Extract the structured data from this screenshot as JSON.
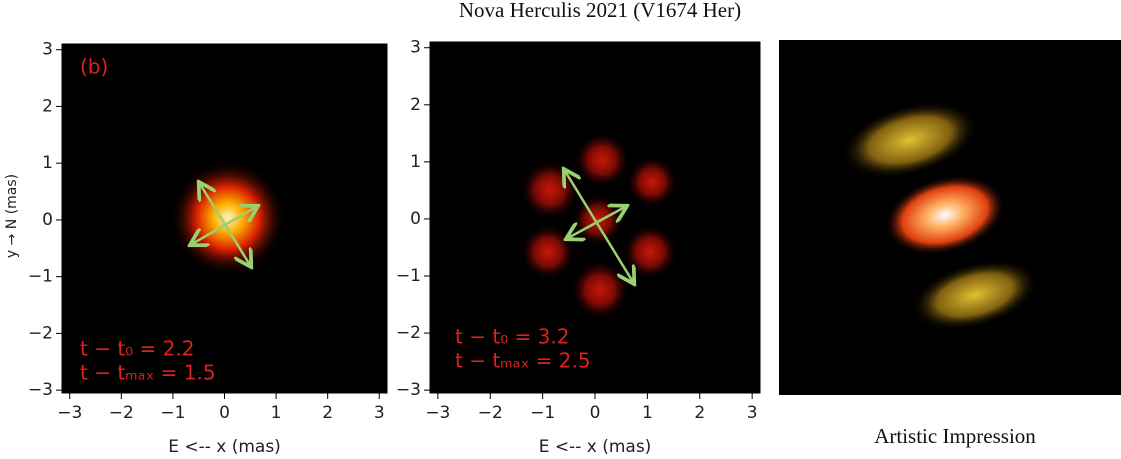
{
  "title": "Nova Herculis 2021 (V1674 Her)",
  "caption": "Artistic Impression",
  "chart_data": [
    {
      "type": "image",
      "x_label": "E <-- x (mas)",
      "y_label": "y → N (mas)",
      "xlim": [
        -3.15,
        3.15
      ],
      "ylim": [
        -3.05,
        3.1
      ],
      "xticks": [
        {
          "value": -3,
          "label": "−3"
        },
        {
          "value": -2,
          "label": "−2"
        },
        {
          "value": -1,
          "label": "−1"
        },
        0,
        1,
        2,
        3
      ],
      "yticks": [
        {
          "value": -3,
          "label": "−3"
        },
        {
          "value": -2,
          "label": "−2"
        },
        {
          "value": -1,
          "label": "−1"
        },
        0,
        1,
        2,
        3
      ],
      "annotations": [
        "(b)",
        "t − t₀ = 2.2",
        "t − tₘₐₓ = 1.5"
      ]
    },
    {
      "type": "image",
      "x_label": "E <-- x (mas)",
      "xlim": [
        -3.15,
        3.15
      ],
      "ylim": [
        -3.05,
        3.1
      ],
      "xticks": [
        {
          "value": -3,
          "label": "−3"
        },
        {
          "value": -2,
          "label": "−2"
        },
        {
          "value": -1,
          "label": "−1"
        },
        0,
        1,
        2,
        3
      ],
      "yticks": [
        {
          "value": -3,
          "label": "−3"
        },
        {
          "value": -2,
          "label": "−2"
        },
        {
          "value": -1,
          "label": "−1"
        },
        0,
        1,
        2,
        3
      ],
      "annotations": [
        "t − t₀ = 3.2",
        "t − tₘₐₓ = 2.5"
      ]
    }
  ]
}
